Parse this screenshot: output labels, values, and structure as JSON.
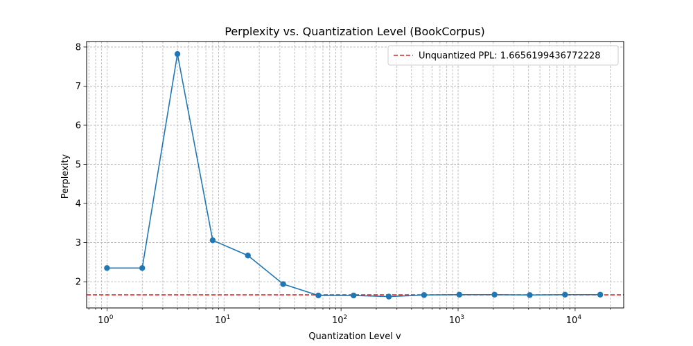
{
  "chart_data": {
    "type": "line",
    "title": "Perplexity vs. Quantization Level (BookCorpus)",
    "xlabel": "Quantization Level v",
    "ylabel": "Perplexity",
    "xscale": "log",
    "xlim": [
      0.67,
      26000
    ],
    "ylim": [
      1.33,
      8.14
    ],
    "x_ticks": [
      {
        "value": 1,
        "label": "10",
        "exp": "0"
      },
      {
        "value": 10,
        "label": "10",
        "exp": "1"
      },
      {
        "value": 100,
        "label": "10",
        "exp": "2"
      },
      {
        "value": 1000,
        "label": "10",
        "exp": "3"
      },
      {
        "value": 10000,
        "label": "10",
        "exp": "4"
      }
    ],
    "y_ticks": [
      2,
      3,
      4,
      5,
      6,
      7,
      8
    ],
    "grid": true,
    "grid_style": "dashed",
    "legend_position": "top-right",
    "series": [
      {
        "x": [
          1,
          2,
          4,
          8,
          16,
          32,
          64,
          128,
          256,
          512,
          1024,
          2048,
          4096,
          8192,
          16384
        ],
        "y": [
          2.35,
          2.35,
          7.82,
          3.06,
          2.67,
          1.94,
          1.65,
          1.65,
          1.62,
          1.66,
          1.67,
          1.67,
          1.66,
          1.67,
          1.67
        ],
        "color": "#1f77b4"
      }
    ],
    "reference_line": {
      "y": 1.6656199436772228,
      "label": "Unquantized PPL: 1.6656199436772228",
      "color": "#d62728",
      "style": "dashed"
    }
  }
}
